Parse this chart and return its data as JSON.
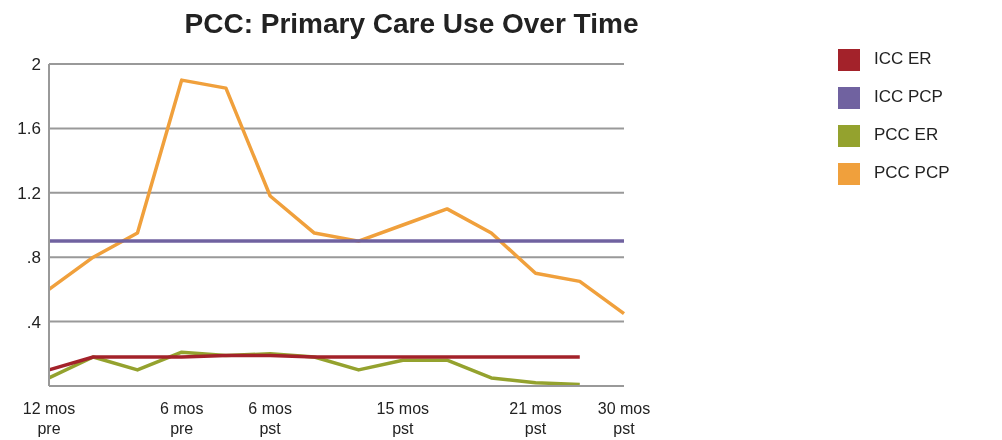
{
  "chart_data": {
    "type": "line",
    "title": "PCC: Primary Care Use Over Time",
    "categories": [
      "12 mos pre",
      null,
      null,
      "6 mos pre",
      null,
      "6 mos pst",
      null,
      null,
      "15 mos pst",
      null,
      null,
      "21 mos pst",
      null,
      "30 mos pst"
    ],
    "series": [
      {
        "name": "PCC PCP",
        "color": "#f0a03c",
        "values": [
          0.6,
          0.8,
          0.95,
          1.9,
          1.85,
          1.18,
          0.95,
          0.9,
          1.0,
          1.1,
          0.95,
          0.7,
          0.65,
          0.45
        ]
      },
      {
        "name": "PCC ER",
        "color": "#94a22e",
        "values": [
          0.05,
          0.18,
          0.1,
          0.21,
          0.19,
          0.2,
          0.18,
          0.1,
          0.16,
          0.16,
          0.05,
          0.02,
          0.01,
          null
        ]
      },
      {
        "name": "ICC PCP",
        "color": "#7062a0",
        "values": [
          0.9,
          0.9,
          0.9,
          0.9,
          0.9,
          0.9,
          0.9,
          0.9,
          0.9,
          0.9,
          0.9,
          0.9,
          0.9,
          0.9
        ]
      },
      {
        "name": "ICC ER",
        "color": "#a3222a",
        "values": [
          0.1,
          0.18,
          0.18,
          0.18,
          0.19,
          0.19,
          0.18,
          0.18,
          0.18,
          0.18,
          0.18,
          0.18,
          0.18,
          null
        ]
      }
    ],
    "ylim": [
      0,
      2
    ],
    "yticks": [
      {
        "value": 0,
        "label": null
      },
      {
        "value": 0.4,
        "label": ".4"
      },
      {
        "value": 0.8,
        "label": ".8"
      },
      1.2,
      1.6,
      2
    ],
    "grid": "y",
    "legend": "top right",
    "marker": "none",
    "line_style": "solid"
  }
}
